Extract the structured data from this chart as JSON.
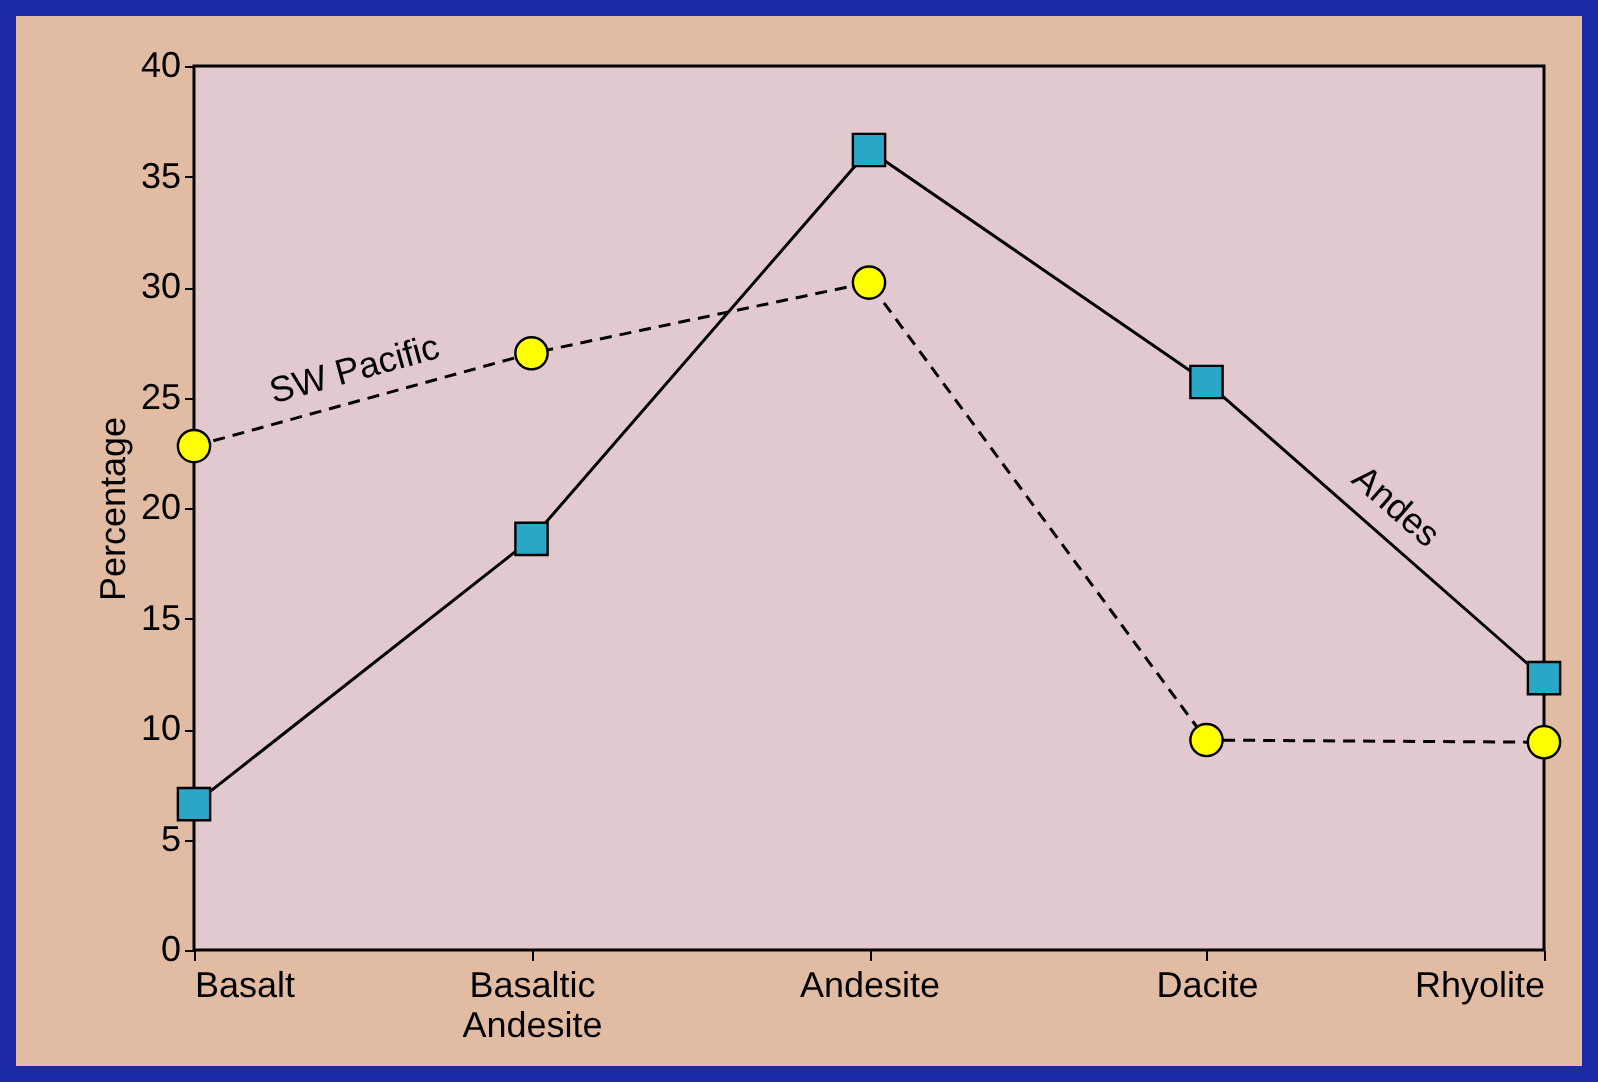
{
  "chart_data": {
    "type": "line",
    "ylabel": "Percentage",
    "categories": [
      "Basalt",
      "Basaltic\nAndesite",
      "Andesite",
      "Dacite",
      "Rhyolite"
    ],
    "series": [
      {
        "name": "SW Pacific",
        "color": "#ffff00",
        "marker": "circle",
        "line_style": "dashed",
        "values": [
          22.8,
          27.0,
          30.2,
          9.5,
          9.4
        ]
      },
      {
        "name": "Andes",
        "color": "#2aa6c6",
        "marker": "square",
        "line_style": "solid",
        "values": [
          6.6,
          18.6,
          36.2,
          25.7,
          12.3
        ]
      }
    ],
    "ylim": [
      0,
      40
    ],
    "yticks": [
      0,
      5,
      10,
      15,
      20,
      25,
      30,
      35,
      40
    ]
  }
}
